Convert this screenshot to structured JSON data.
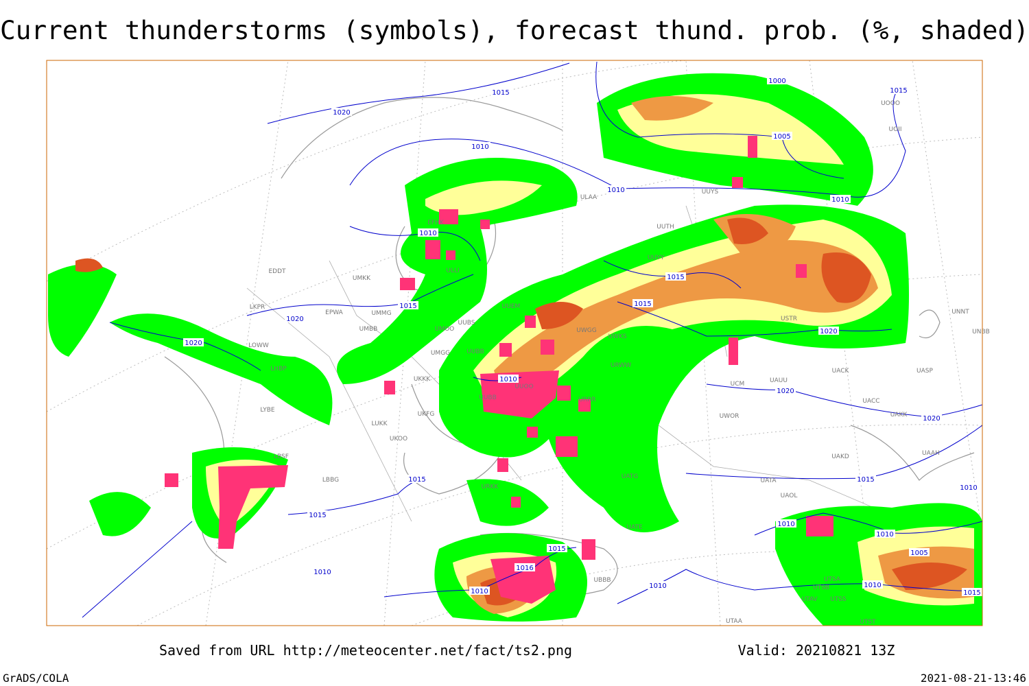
{
  "header": {
    "title": "Current thunderstorms (symbols), forecast thund. prob. (%, shaded)"
  },
  "isobars": [
    "1020",
    "1015",
    "1010",
    "1010",
    "1000",
    "1015",
    "1005",
    "1010",
    "1010",
    "1015",
    "1020",
    "1020",
    "1015",
    "1015",
    "1020",
    "1010",
    "1020",
    "1020",
    "1015",
    "1015",
    "1015",
    "1010",
    "1010",
    "1010",
    "1005",
    "1015",
    "1016",
    "1010",
    "1010",
    "1010",
    "1010",
    "1015"
  ],
  "stations": [
    "ULAA",
    "UUYS",
    "UMKK",
    "EDDT",
    "UMMG",
    "UMBB",
    "EPWA",
    "LKPR",
    "LOWW",
    "LHBP",
    "UUEM",
    "UUBS",
    "UMOO",
    "UMGG",
    "UUBB",
    "UKKK",
    "UKFG",
    "LUKK",
    "UKOO",
    "LYBE",
    "LBSF",
    "LBBG",
    "UUYY",
    "UUTH",
    "UWKS",
    "UWGG",
    "UUOO",
    "UUBB",
    "URWW",
    "URRR",
    "UATG",
    "UATE",
    "UATA",
    "UAOL",
    "UACK",
    "UASP",
    "UACC",
    "UAKK",
    "UAKD",
    "UAAH",
    "UNNT",
    "UNBB",
    "UOOO",
    "UOII",
    "USTR",
    "UAUU",
    "ULLI",
    "EFHK",
    "UTSA",
    "UTSB",
    "UTAV",
    "UTSS",
    "UTAA",
    "UTST",
    "UBBB",
    "URKK",
    "UWOR",
    "UCM"
  ],
  "footer": {
    "source": "Saved from URL http://meteocenter.net/fact/ts2.png",
    "valid": "Valid: 20210821 13Z",
    "software": "GrADS/COLA",
    "timestamp": "2021-08-21-13:46"
  }
}
